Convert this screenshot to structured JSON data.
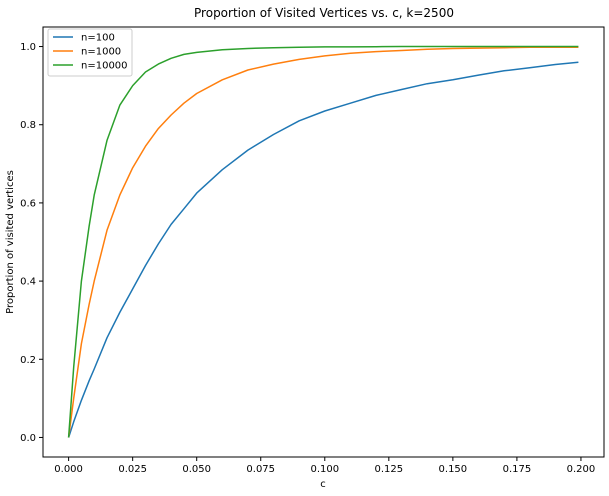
{
  "chart_data": {
    "type": "line",
    "title": "Proportion of Visited Vertices vs. c, k=2500",
    "xlabel": "c",
    "ylabel": "Proportion of visited vertices",
    "xlim": [
      -0.01,
      0.209
    ],
    "ylim": [
      -0.05,
      1.05
    ],
    "xticks": [
      0.0,
      0.025,
      0.05,
      0.075,
      0.1,
      0.125,
      0.15,
      0.175,
      0.2
    ],
    "xtick_labels": [
      "0.000",
      "0.025",
      "0.050",
      "0.075",
      "0.100",
      "0.125",
      "0.150",
      "0.175",
      "0.200"
    ],
    "yticks": [
      0.0,
      0.2,
      0.4,
      0.6,
      0.8,
      1.0
    ],
    "ytick_labels": [
      "0.0",
      "0.2",
      "0.4",
      "0.6",
      "0.8",
      "1.0"
    ],
    "legend_position": "top-left",
    "x": [
      0.0,
      0.002,
      0.005,
      0.008,
      0.01,
      0.015,
      0.02,
      0.025,
      0.03,
      0.035,
      0.04,
      0.045,
      0.05,
      0.06,
      0.07,
      0.08,
      0.09,
      0.1,
      0.11,
      0.12,
      0.13,
      0.14,
      0.15,
      0.16,
      0.17,
      0.18,
      0.19,
      0.199
    ],
    "series": [
      {
        "name": "n=100",
        "color": "#1f77b4",
        "values": [
          0.0,
          0.04,
          0.095,
          0.145,
          0.175,
          0.255,
          0.32,
          0.38,
          0.44,
          0.495,
          0.545,
          0.585,
          0.625,
          0.685,
          0.735,
          0.775,
          0.81,
          0.835,
          0.855,
          0.875,
          0.89,
          0.905,
          0.915,
          0.927,
          0.938,
          0.946,
          0.954,
          0.96
        ]
      },
      {
        "name": "n=1000",
        "color": "#ff7f0e",
        "values": [
          0.0,
          0.1,
          0.24,
          0.34,
          0.4,
          0.53,
          0.62,
          0.69,
          0.745,
          0.79,
          0.825,
          0.855,
          0.88,
          0.915,
          0.94,
          0.955,
          0.967,
          0.976,
          0.983,
          0.987,
          0.99,
          0.993,
          0.995,
          0.996,
          0.997,
          0.998,
          0.998,
          0.998
        ]
      },
      {
        "name": "n=10000",
        "color": "#2ca02c",
        "values": [
          0.0,
          0.18,
          0.4,
          0.54,
          0.62,
          0.76,
          0.85,
          0.9,
          0.935,
          0.955,
          0.97,
          0.98,
          0.985,
          0.992,
          0.995,
          0.997,
          0.998,
          0.999,
          0.999,
          0.9995,
          1.0,
          1.0,
          1.0,
          1.0,
          1.0,
          1.0,
          1.0,
          1.0
        ]
      }
    ]
  }
}
